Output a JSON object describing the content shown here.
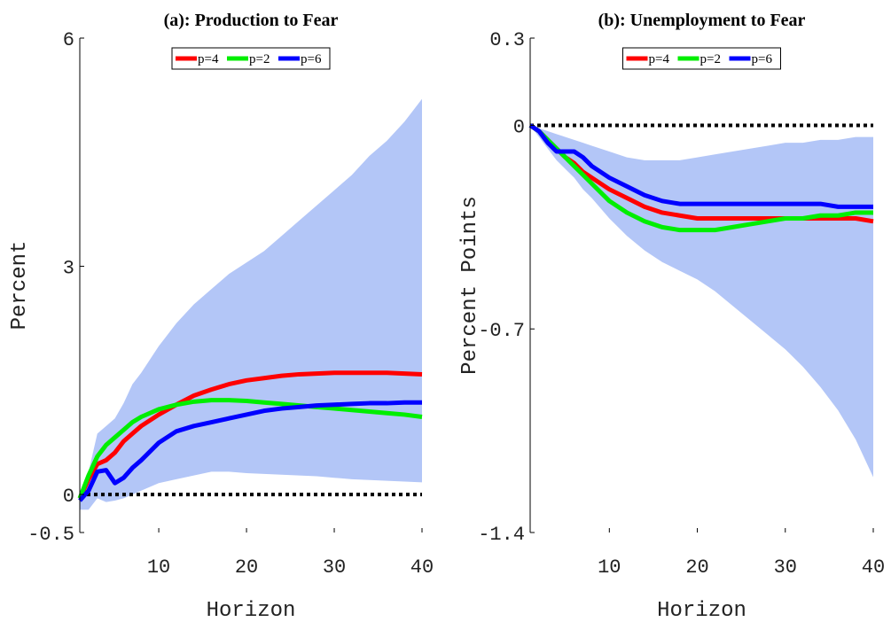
{
  "chart_data": [
    {
      "type": "line",
      "title": "(a): Production to Fear",
      "xlabel": "Horizon",
      "ylabel": "Percent",
      "x": [
        1,
        2,
        3,
        4,
        5,
        6,
        7,
        8,
        10,
        12,
        14,
        16,
        18,
        20,
        22,
        24,
        26,
        28,
        30,
        32,
        34,
        36,
        38,
        40
      ],
      "xlim": [
        1,
        40
      ],
      "xticks": [
        10,
        20,
        30,
        40
      ],
      "ylim": [
        -0.5,
        6
      ],
      "yticks": [
        -0.5,
        0,
        3,
        6
      ],
      "legend": "top",
      "hline": 0,
      "band": {
        "color": "#b3c6f7",
        "upper": [
          0,
          0.3,
          0.8,
          0.9,
          1.0,
          1.2,
          1.45,
          1.6,
          1.95,
          2.25,
          2.5,
          2.7,
          2.9,
          3.05,
          3.2,
          3.4,
          3.6,
          3.8,
          4.0,
          4.2,
          4.45,
          4.65,
          4.9,
          5.2
        ],
        "lower": [
          -0.2,
          -0.2,
          -0.05,
          -0.1,
          -0.08,
          -0.05,
          0,
          0.05,
          0.15,
          0.2,
          0.25,
          0.3,
          0.3,
          0.28,
          0.27,
          0.26,
          0.25,
          0.24,
          0.22,
          0.2,
          0.19,
          0.18,
          0.17,
          0.16
        ]
      },
      "series": [
        {
          "name": "p=4",
          "color": "#ff0000",
          "values": [
            -0.05,
            0.2,
            0.4,
            0.45,
            0.55,
            0.7,
            0.8,
            0.9,
            1.05,
            1.18,
            1.3,
            1.38,
            1.45,
            1.5,
            1.53,
            1.56,
            1.58,
            1.59,
            1.6,
            1.6,
            1.6,
            1.6,
            1.59,
            1.58
          ]
        },
        {
          "name": "p=2",
          "color": "#00ee00",
          "values": [
            -0.05,
            0.25,
            0.5,
            0.65,
            0.75,
            0.85,
            0.95,
            1.02,
            1.12,
            1.18,
            1.22,
            1.24,
            1.24,
            1.23,
            1.21,
            1.19,
            1.17,
            1.15,
            1.13,
            1.11,
            1.09,
            1.07,
            1.05,
            1.02
          ]
        },
        {
          "name": "p=6",
          "color": "#0000ff",
          "values": [
            -0.08,
            0.05,
            0.3,
            0.32,
            0.15,
            0.22,
            0.35,
            0.45,
            0.68,
            0.83,
            0.9,
            0.95,
            1.0,
            1.05,
            1.1,
            1.13,
            1.15,
            1.17,
            1.18,
            1.19,
            1.2,
            1.2,
            1.21,
            1.21
          ]
        }
      ]
    },
    {
      "type": "line",
      "title": "(b): Unemployment to Fear",
      "xlabel": "Horizon",
      "ylabel": "Percent Points",
      "x": [
        1,
        2,
        3,
        4,
        5,
        6,
        7,
        8,
        10,
        12,
        14,
        16,
        18,
        20,
        22,
        24,
        26,
        28,
        30,
        32,
        34,
        36,
        38,
        40
      ],
      "xlim": [
        1,
        40
      ],
      "xticks": [
        10,
        20,
        30,
        40
      ],
      "ylim": [
        -1.4,
        0.3
      ],
      "yticks": [
        -1.4,
        -0.7,
        0,
        0.3
      ],
      "legend": "top",
      "hline": 0,
      "band": {
        "color": "#b3c6f7",
        "upper": [
          0,
          -0.01,
          -0.02,
          -0.03,
          -0.04,
          -0.05,
          -0.06,
          -0.07,
          -0.09,
          -0.11,
          -0.12,
          -0.12,
          -0.12,
          -0.11,
          -0.1,
          -0.09,
          -0.08,
          -0.07,
          -0.06,
          -0.06,
          -0.05,
          -0.05,
          -0.04,
          -0.04
        ],
        "lower": [
          0,
          -0.04,
          -0.08,
          -0.12,
          -0.15,
          -0.18,
          -0.22,
          -0.25,
          -0.32,
          -0.38,
          -0.43,
          -0.47,
          -0.5,
          -0.53,
          -0.57,
          -0.62,
          -0.67,
          -0.72,
          -0.77,
          -0.83,
          -0.9,
          -0.98,
          -1.08,
          -1.21
        ]
      },
      "series": [
        {
          "name": "p=4",
          "color": "#ff0000",
          "values": [
            0,
            -0.02,
            -0.05,
            -0.08,
            -0.11,
            -0.13,
            -0.16,
            -0.18,
            -0.22,
            -0.25,
            -0.28,
            -0.3,
            -0.31,
            -0.32,
            -0.32,
            -0.32,
            -0.32,
            -0.32,
            -0.32,
            -0.32,
            -0.32,
            -0.32,
            -0.32,
            -0.33
          ]
        },
        {
          "name": "p=2",
          "color": "#00ee00",
          "values": [
            0,
            -0.02,
            -0.05,
            -0.08,
            -0.11,
            -0.14,
            -0.17,
            -0.2,
            -0.26,
            -0.3,
            -0.33,
            -0.35,
            -0.36,
            -0.36,
            -0.36,
            -0.35,
            -0.34,
            -0.33,
            -0.32,
            -0.32,
            -0.31,
            -0.31,
            -0.3,
            -0.3
          ]
        },
        {
          "name": "p=6",
          "color": "#0000ff",
          "values": [
            0,
            -0.02,
            -0.06,
            -0.09,
            -0.09,
            -0.09,
            -0.11,
            -0.14,
            -0.18,
            -0.21,
            -0.24,
            -0.26,
            -0.27,
            -0.27,
            -0.27,
            -0.27,
            -0.27,
            -0.27,
            -0.27,
            -0.27,
            -0.27,
            -0.28,
            -0.28,
            -0.28
          ]
        }
      ]
    }
  ]
}
